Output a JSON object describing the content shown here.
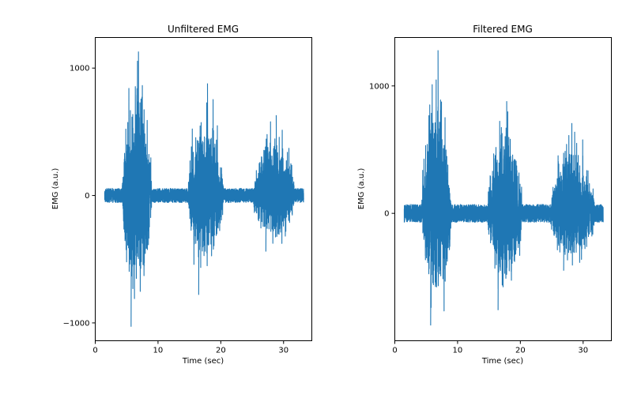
{
  "chart_data": [
    {
      "type": "line",
      "title": "Unfiltered EMG",
      "xlabel": "Time (sec)",
      "ylabel": "EMG (a.u.)",
      "xlim": [
        0,
        34.5
      ],
      "ylim": [
        -1140,
        1240
      ],
      "xticks": [
        0,
        10,
        20,
        30
      ],
      "yticks": [
        -1000,
        0,
        1000
      ],
      "ytick_labels": [
        "−1000",
        "0",
        "1000"
      ],
      "grid": false,
      "color": "#1f77b4",
      "signal": {
        "t_start": 1.5,
        "t_end": 33.2,
        "baseline_amp": 55,
        "offset": 0
      },
      "bursts": [
        {
          "start": 4.3,
          "end": 9.0,
          "max": 1130,
          "min": -1030
        },
        {
          "start": 14.8,
          "end": 20.4,
          "max": 880,
          "min": -780
        },
        {
          "start": 25.2,
          "end": 31.8,
          "max": 630,
          "min": -440
        }
      ],
      "series": [
        {
          "values": []
        }
      ]
    },
    {
      "type": "line",
      "title": "Filtered EMG",
      "xlabel": "Time (sec)",
      "ylabel": "EMG (a.u.)",
      "xlim": [
        0,
        34.5
      ],
      "ylim": [
        -1000,
        1380
      ],
      "xticks": [
        0,
        10,
        20,
        30
      ],
      "yticks": [
        0,
        1000
      ],
      "ytick_labels": [
        "0",
        "1000"
      ],
      "grid": false,
      "color": "#1f77b4",
      "signal": {
        "t_start": 1.5,
        "t_end": 33.2,
        "baseline_amp": 70,
        "offset": 0
      },
      "bursts": [
        {
          "start": 4.3,
          "end": 9.0,
          "max": 1280,
          "min": -880
        },
        {
          "start": 14.8,
          "end": 20.3,
          "max": 880,
          "min": -760
        },
        {
          "start": 24.8,
          "end": 31.8,
          "max": 640,
          "min": -450
        }
      ],
      "series": [
        {
          "values": []
        }
      ]
    }
  ]
}
